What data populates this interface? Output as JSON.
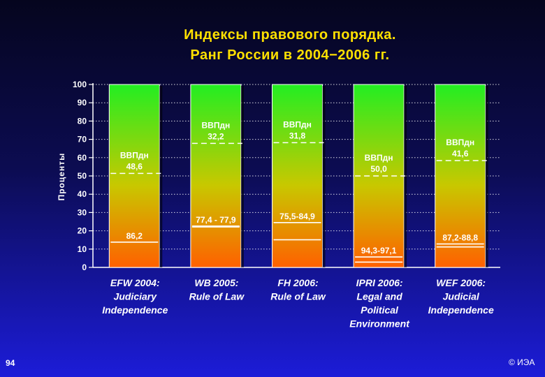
{
  "slide": {
    "title_line1": "Индексы правового порядка.",
    "title_line2": "Ранг России в 2004−2006 гг.",
    "page_number": "94",
    "copyright": "© ИЭА"
  },
  "colors": {
    "background_top": "#05051e",
    "background_bottom": "#1c1cd8",
    "title": "#ffe000",
    "bar_top": "#22ee22",
    "bar_mid": "#c8c800",
    "bar_bottom": "#ff6000",
    "text": "#ffffff"
  },
  "chart_data": {
    "type": "bar",
    "ylabel": "Проценты",
    "ylim": [
      0,
      100
    ],
    "yticks": [
      0,
      10,
      20,
      30,
      40,
      50,
      60,
      70,
      80,
      90,
      100
    ],
    "grid": true,
    "categories": [
      [
        "EFW 2004:",
        "Judiciary",
        "Independence"
      ],
      [
        "WB 2005:",
        "Rule of Law"
      ],
      [
        "FH 2006:",
        "Rule of Law"
      ],
      [
        "IPRI 2006:",
        "Legal and",
        "Political",
        "Environment"
      ],
      [
        "WEF 2006:",
        "Judicial",
        "Independence"
      ]
    ],
    "bars": [
      {
        "value": 100,
        "russia_label": "86,2",
        "russia_lines": [
          13.8
        ],
        "gdp_label": [
          "ВВПдн",
          "48,6"
        ],
        "gdp_line": 51.4
      },
      {
        "value": 100,
        "russia_label": "77,4 - 77,9",
        "russia_lines": [
          22.1,
          22.6
        ],
        "gdp_label": [
          "ВВПдн",
          "32,2"
        ],
        "gdp_line": 67.8
      },
      {
        "value": 100,
        "russia_label": "75,5-84,9",
        "russia_lines": [
          15.1,
          24.5
        ],
        "gdp_label": [
          "ВВПдн",
          "31,8"
        ],
        "gdp_line": 68.2
      },
      {
        "value": 100,
        "russia_label": "94,3-97,1",
        "russia_lines": [
          2.9,
          5.7
        ],
        "gdp_label": [
          "ВВПдн",
          "50,0"
        ],
        "gdp_line": 50.0
      },
      {
        "value": 100,
        "russia_label": "87,2-88,8",
        "russia_lines": [
          11.2,
          12.8
        ],
        "gdp_label": [
          "ВВПдн",
          "41,6"
        ],
        "gdp_line": 58.4
      }
    ]
  }
}
